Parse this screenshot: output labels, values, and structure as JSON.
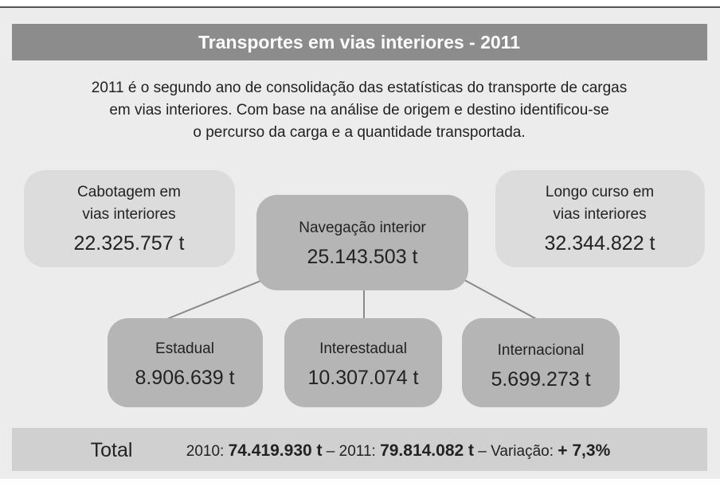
{
  "title": "Transportes em vias interiores - 2011",
  "intro": [
    "2011 é o segundo ano de consolidação das estatísticas do transporte de cargas",
    "em vias interiores. Com base na análise de origem e destino identificou-se",
    "o percurso da carga e a quantidade transportada."
  ],
  "nodes": [
    {
      "label": [
        "Cabotagem em",
        "vias interiores"
      ],
      "value": "22.325.757 t"
    },
    {
      "label": [
        "Navegação interior"
      ],
      "value": "25.143.503 t"
    },
    {
      "label": [
        "Longo curso em",
        "vias interiores"
      ],
      "value": "32.344.822 t"
    },
    {
      "label": [
        "Estadual"
      ],
      "value": "8.906.639 t"
    },
    {
      "label": [
        "Interestadual"
      ],
      "value": "10.307.074 t"
    },
    {
      "label": [
        "Internacional"
      ],
      "value": "5.699.273 t"
    }
  ],
  "total": {
    "label": "Total",
    "year1": "2010:",
    "value1": "74.419.930 t",
    "sep1": "–",
    "year2": "2011:",
    "value2": "79.814.082 t",
    "sep2": "– Variação:",
    "change": "+ 7,3%"
  }
}
